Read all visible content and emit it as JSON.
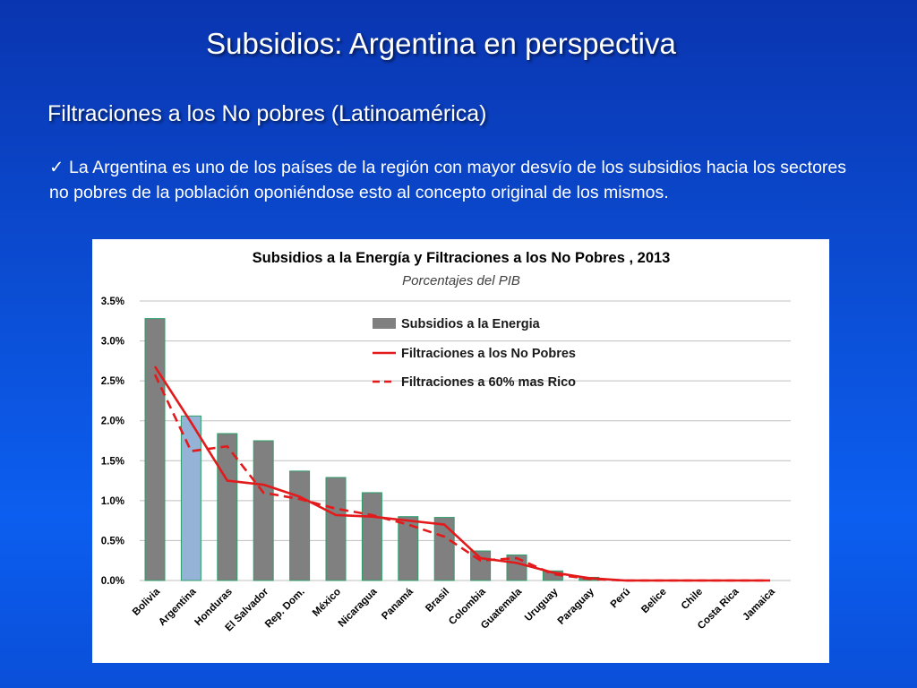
{
  "slide": {
    "title": "Subsidios: Argentina en perspectiva",
    "subtitle": "Filtraciones a los No pobres (Latinoamérica)",
    "bullet_mark": "✓",
    "bullet_text": "La Argentina es uno de los países de la región con mayor desvío de los subsidios hacia los sectores no pobres de la población oponiéndose esto al concepto original de los mismos."
  },
  "chart_data": {
    "type": "bar",
    "title": "Subsidios a la Energía y Filtraciones a los No Pobres , 2013",
    "subtitle": "Porcentajes del PIB",
    "xlabel": "",
    "ylabel": "",
    "ylim": [
      0,
      3.5
    ],
    "yticks": [
      "0.0%",
      "0.5%",
      "1.0%",
      "1.5%",
      "2.0%",
      "2.5%",
      "3.0%",
      "3.5%"
    ],
    "grid": true,
    "legend_position": "top-right",
    "categories": [
      "Bolivia",
      "Argentina",
      "Honduras",
      "El Salvador",
      "Rep. Dom.",
      "México",
      "Nicaragua",
      "Panamá",
      "Brasil",
      "Colombia",
      "Guatemala",
      "Uruguay",
      "Paraguay",
      "Perú",
      "Belice",
      "Chile",
      "Costa Rica",
      "Jamaica"
    ],
    "highlight_category": "Argentina",
    "colors": {
      "bar": "#808080",
      "bar_border": "#2e9e6a",
      "bar_highlight": "#95b3d7",
      "line": "#e31a1c",
      "grid": "#bfbfbf"
    },
    "series": [
      {
        "name": "Subsidios a la Energia",
        "type": "bar",
        "values": [
          3.28,
          2.06,
          1.84,
          1.75,
          1.37,
          1.29,
          1.1,
          0.8,
          0.79,
          0.37,
          0.32,
          0.12,
          0.04,
          0.0,
          0.0,
          0.0,
          0.0,
          0.0
        ]
      },
      {
        "name": "Filtraciones a los No Pobres",
        "type": "line",
        "style": "solid",
        "values": [
          2.68,
          1.98,
          1.25,
          1.2,
          1.05,
          0.82,
          0.8,
          0.75,
          0.7,
          0.28,
          0.22,
          0.1,
          0.03,
          0.0,
          0.0,
          0.0,
          0.0,
          0.0
        ]
      },
      {
        "name": "Filtraciones a 60% mas Rico",
        "type": "line",
        "style": "dashed",
        "values": [
          2.58,
          1.62,
          1.68,
          1.1,
          1.02,
          0.9,
          0.82,
          0.7,
          0.55,
          0.25,
          0.28,
          0.08,
          0.02,
          0.0,
          0.0,
          0.0,
          0.0,
          0.0
        ]
      }
    ]
  }
}
